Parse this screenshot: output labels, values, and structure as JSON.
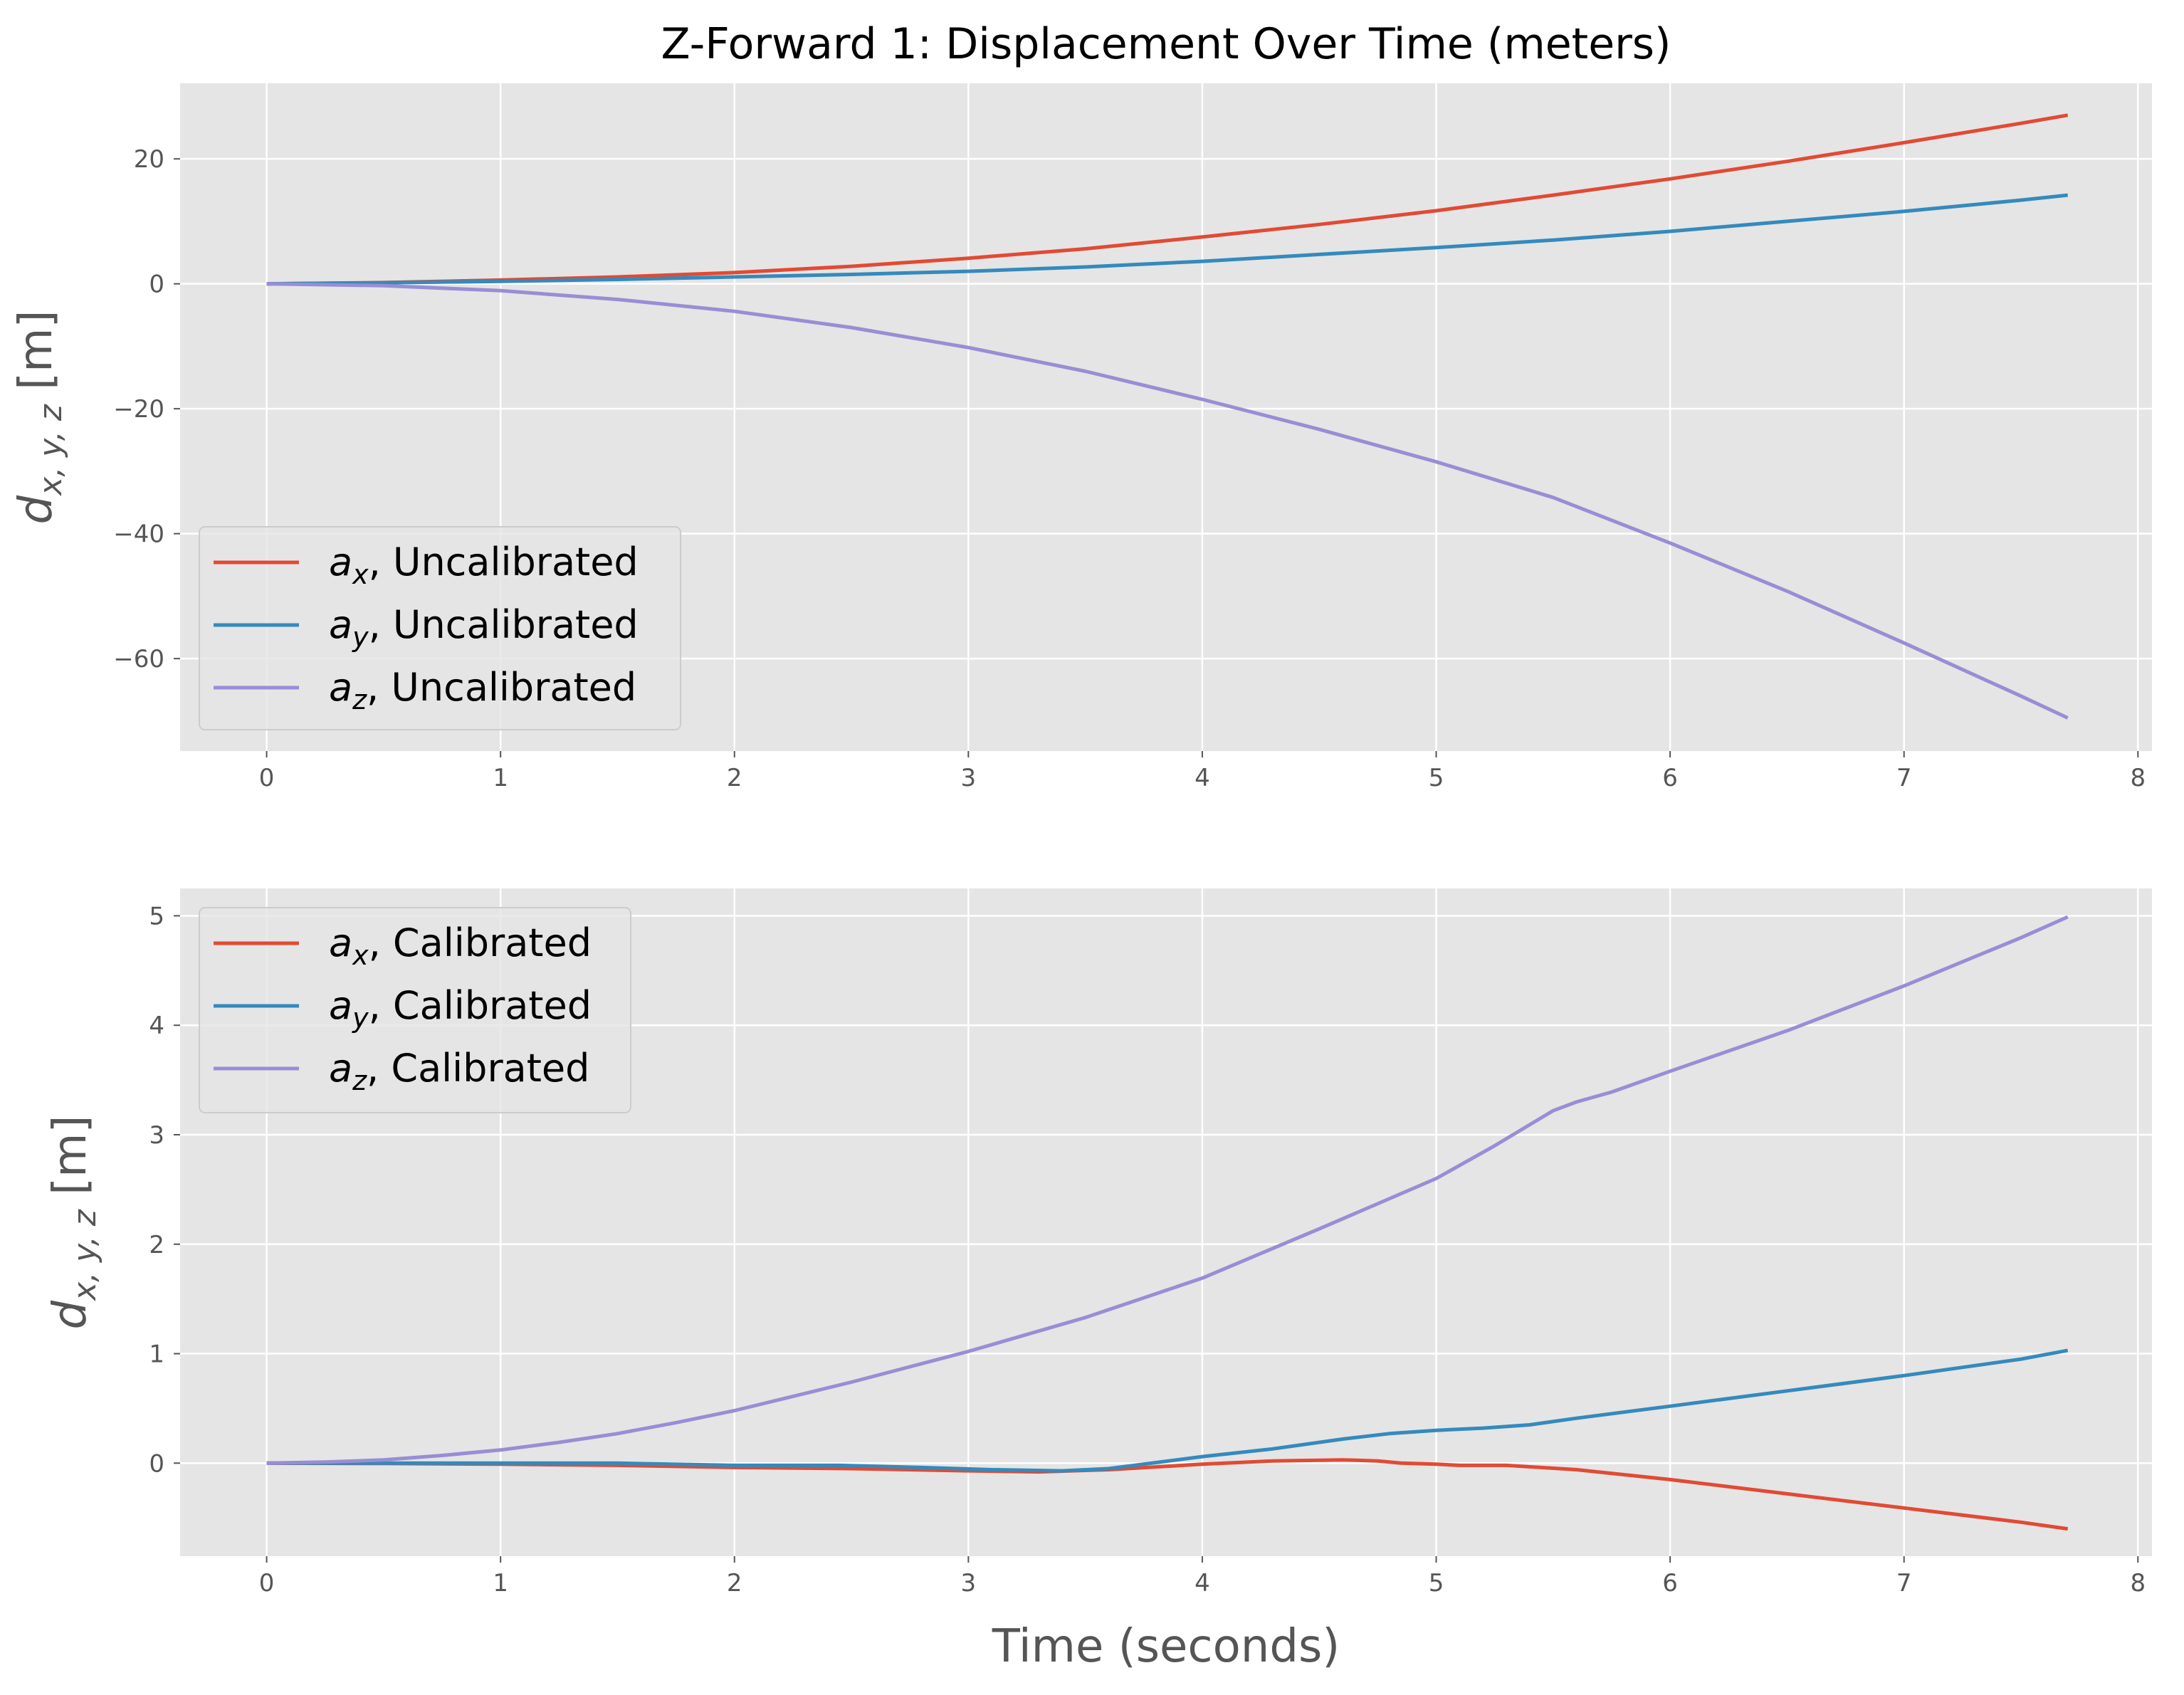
{
  "colors": {
    "page_bg": "#ffffff",
    "panel_bg": "#e5e5e5",
    "grid": "#ffffff",
    "tick_text": "#555555",
    "series_x": "#e24a33",
    "series_y": "#348abd",
    "series_z": "#988ed5"
  },
  "chart_data": [
    {
      "type": "line",
      "title": "Z-Forward 1: Displacement Over Time (meters)",
      "xlabel": "",
      "ylabel": {
        "base": "d",
        "sub": "x, y, z",
        "unit": " [m]"
      },
      "xlim": [
        -0.37,
        8.06
      ],
      "ylim": [
        -74.8,
        32.1
      ],
      "xticks": [
        0,
        1,
        2,
        3,
        4,
        5,
        6,
        7,
        8
      ],
      "yticks": [
        -60,
        -40,
        -20,
        0,
        20
      ],
      "ytick_labels": [
        "−60",
        "−40",
        "−20",
        "0",
        "20"
      ],
      "grid": true,
      "legend_position": "lower-left",
      "series": [
        {
          "name": "Uncalibrated",
          "symbol": "a",
          "sub": "x",
          "color": "#e24a33",
          "x": [
            0,
            0.5,
            1,
            1.5,
            2,
            2.5,
            3,
            3.5,
            4,
            4.5,
            5,
            5.5,
            6,
            6.5,
            7,
            7.5,
            7.7
          ],
          "y": [
            0,
            0.2,
            0.6,
            1.1,
            1.8,
            2.8,
            4.1,
            5.6,
            7.5,
            9.5,
            11.7,
            14.2,
            16.8,
            19.6,
            22.6,
            25.7,
            27.0
          ]
        },
        {
          "name": "Uncalibrated",
          "symbol": "a",
          "sub": "y",
          "color": "#348abd",
          "x": [
            0,
            0.5,
            1,
            1.5,
            2,
            2.5,
            3,
            3.5,
            4,
            4.5,
            5,
            5.5,
            6,
            6.5,
            7,
            7.5,
            7.7
          ],
          "y": [
            0,
            0.15,
            0.4,
            0.7,
            1.1,
            1.5,
            2.0,
            2.7,
            3.6,
            4.7,
            5.8,
            7.0,
            8.4,
            10.0,
            11.6,
            13.4,
            14.2
          ]
        },
        {
          "name": "Uncalibrated",
          "symbol": "a",
          "sub": "z",
          "color": "#988ed5",
          "x": [
            0,
            0.5,
            1,
            1.5,
            2,
            2.5,
            3,
            3.5,
            4,
            4.5,
            5,
            5.5,
            6,
            6.5,
            7,
            7.5,
            7.7
          ],
          "y": [
            0,
            -0.3,
            -1.1,
            -2.5,
            -4.4,
            -7.0,
            -10.2,
            -14.0,
            -18.5,
            -23.3,
            -28.5,
            -34.2,
            -41.5,
            -49.2,
            -57.5,
            -66.0,
            -69.5
          ]
        }
      ]
    },
    {
      "type": "line",
      "title": "",
      "xlabel": "Time (seconds)",
      "ylabel": {
        "base": "d",
        "sub": "x, y, z",
        "unit": " [m]"
      },
      "xlim": [
        -0.37,
        8.06
      ],
      "ylim": [
        -0.85,
        5.25
      ],
      "xticks": [
        0,
        1,
        2,
        3,
        4,
        5,
        6,
        7,
        8
      ],
      "yticks": [
        0,
        1,
        2,
        3,
        4,
        5
      ],
      "ytick_labels": [
        "0",
        "1",
        "2",
        "3",
        "4",
        "5"
      ],
      "grid": true,
      "legend_position": "upper-left",
      "series": [
        {
          "name": "Calibrated",
          "symbol": "a",
          "sub": "x",
          "color": "#e24a33",
          "x": [
            0,
            0.5,
            1,
            1.5,
            2,
            2.5,
            3,
            3.3,
            3.6,
            4,
            4.3,
            4.6,
            4.75,
            4.85,
            5,
            5.1,
            5.3,
            5.6,
            6,
            6.5,
            7,
            7.5,
            7.7
          ],
          "y": [
            0,
            -0.003,
            -0.01,
            -0.02,
            -0.04,
            -0.05,
            -0.07,
            -0.08,
            -0.06,
            -0.01,
            0.02,
            0.03,
            0.02,
            0.0,
            -0.01,
            -0.02,
            -0.02,
            -0.06,
            -0.15,
            -0.28,
            -0.41,
            -0.54,
            -0.6
          ]
        },
        {
          "name": "Calibrated",
          "symbol": "a",
          "sub": "y",
          "color": "#348abd",
          "x": [
            0,
            0.5,
            1,
            1.5,
            2,
            2.45,
            2.8,
            3.1,
            3.4,
            3.6,
            4,
            4.3,
            4.6,
            4.8,
            5,
            5.2,
            5.4,
            5.6,
            6,
            6.5,
            7,
            7.5,
            7.7
          ],
          "y": [
            0,
            0.0,
            0.0,
            0.0,
            -0.02,
            -0.02,
            -0.04,
            -0.06,
            -0.07,
            -0.05,
            0.06,
            0.13,
            0.22,
            0.27,
            0.3,
            0.32,
            0.35,
            0.41,
            0.52,
            0.66,
            0.8,
            0.95,
            1.03
          ]
        },
        {
          "name": "Calibrated",
          "symbol": "a",
          "sub": "z",
          "color": "#988ed5",
          "x": [
            0,
            0.25,
            0.5,
            0.75,
            1,
            1.25,
            1.5,
            1.75,
            2,
            2.5,
            3,
            3.5,
            4,
            4.5,
            5,
            5.25,
            5.5,
            5.6,
            5.75,
            6,
            6.5,
            7,
            7.5,
            7.7
          ],
          "y": [
            0,
            0.01,
            0.03,
            0.07,
            0.12,
            0.19,
            0.27,
            0.37,
            0.48,
            0.74,
            1.02,
            1.33,
            1.69,
            2.14,
            2.6,
            2.9,
            3.22,
            3.3,
            3.39,
            3.58,
            3.95,
            4.36,
            4.8,
            4.99
          ]
        }
      ]
    }
  ]
}
